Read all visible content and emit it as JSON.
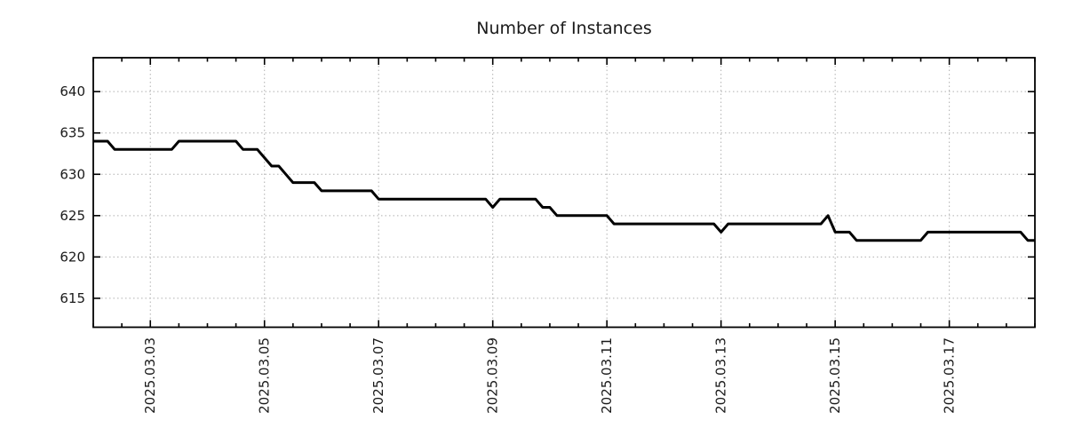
{
  "page": {
    "background": "#ffffff"
  },
  "chart_data": {
    "type": "line",
    "title": "Number of Instances",
    "xlabel": "",
    "ylabel": "",
    "legend": "none",
    "grid": "dotted",
    "x_axis": {
      "tick_labels": [
        "2025.03.03",
        "2025.03.05",
        "2025.03.07",
        "2025.03.09",
        "2025.03.11",
        "2025.03.13",
        "2025.03.15",
        "2025.03.17"
      ],
      "tick_indices": [
        8,
        24,
        40,
        56,
        72,
        88,
        104,
        120
      ],
      "minor_tick_every_indices": 4,
      "start": "2025.03.02 00:00",
      "end": "2025.03.18 12:00",
      "sample_interval_hours": 3,
      "label_rotation_deg": -90
    },
    "y_axis": {
      "ticks": [
        615,
        620,
        625,
        630,
        635,
        640
      ],
      "lim": [
        611.5,
        644.1
      ]
    },
    "colors": {
      "line": "#000000",
      "grid": "#b0b0b0",
      "axis": "#000000",
      "title": "#1a1a1a",
      "tick_label": "#1a1a1a"
    },
    "series": [
      {
        "name": "Number of Instances",
        "values": [
          634,
          634,
          634,
          633,
          633,
          633,
          633,
          633,
          633,
          633,
          633,
          633,
          634,
          634,
          634,
          634,
          634,
          634,
          634,
          634,
          634,
          633,
          633,
          633,
          632,
          631,
          631,
          630,
          629,
          629,
          629,
          629,
          628,
          628,
          628,
          628,
          628,
          628,
          628,
          628,
          627,
          627,
          627,
          627,
          627,
          627,
          627,
          627,
          627,
          627,
          627,
          627,
          627,
          627,
          627,
          627,
          626,
          627,
          627,
          627,
          627,
          627,
          627,
          626,
          626,
          625,
          625,
          625,
          625,
          625,
          625,
          625,
          625,
          624,
          624,
          624,
          624,
          624,
          624,
          624,
          624,
          624,
          624,
          624,
          624,
          624,
          624,
          624,
          623,
          624,
          624,
          624,
          624,
          624,
          624,
          624,
          624,
          624,
          624,
          624,
          624,
          624,
          624,
          625,
          623,
          623,
          623,
          622,
          622,
          622,
          622,
          622,
          622,
          622,
          622,
          622,
          622,
          623,
          623,
          623,
          623,
          623,
          623,
          623,
          623,
          623,
          623,
          623,
          623,
          623,
          623,
          622,
          622
        ]
      }
    ]
  }
}
